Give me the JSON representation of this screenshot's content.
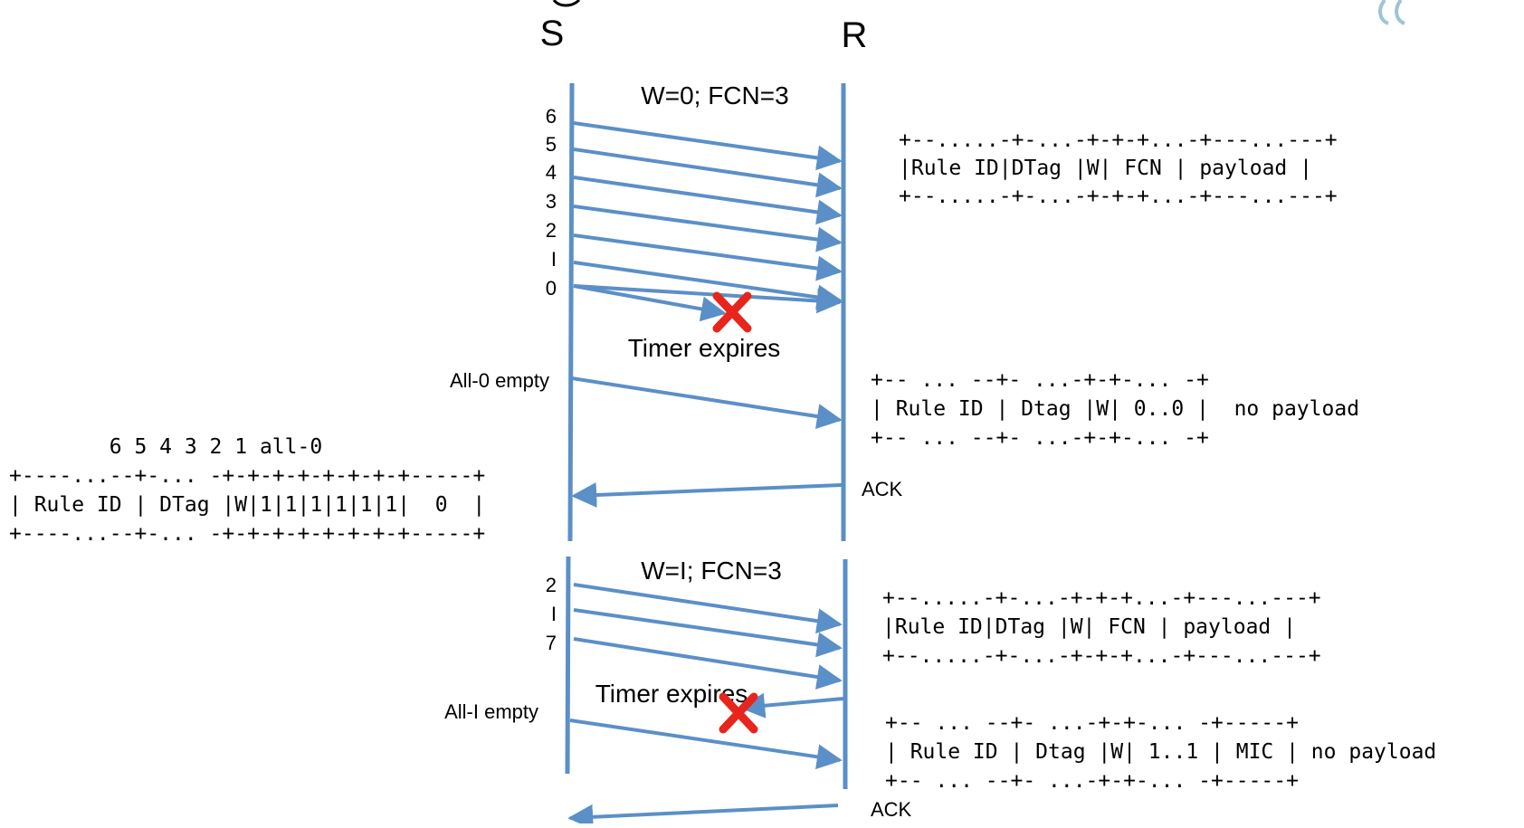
{
  "colors": {
    "line": "#5b8fc7",
    "cross": "#e8251c",
    "text": "#000000",
    "deco": "#9fc3d6"
  },
  "diagram": {
    "sender": "S",
    "receiver": "R",
    "window0": {
      "title": "W=0; FCN=3",
      "fcn_labels": [
        "6",
        "5",
        "4",
        "3",
        "2",
        "I",
        "0"
      ],
      "timer": "Timer expires",
      "all0_label": "All-0 empty",
      "ack_label": "ACK",
      "frame_box": [
        "+--.....-+-...-+-+-+...-+---...---+",
        "|Rule ID|DTag |W| FCN | payload |",
        "+--.....-+-...-+-+-+...-+---...---+"
      ],
      "all0_box": [
        "+-- ... --+- ...-+-+-... -+",
        "| Rule ID | Dtag |W| 0..0 |  no payload",
        "+-- ... --+- ...-+-+-... -+"
      ],
      "bitmap_box": [
        "        6 5 4 3 2 1 all-0",
        "+----...--+-... -+-+-+-+-+-+-+-+-----+",
        "| Rule ID | DTag |W|1|1|1|1|1|1|  0  |",
        "+----...--+-... -+-+-+-+-+-+-+-+-----+"
      ]
    },
    "window1": {
      "title": "W=I; FCN=3",
      "fcn_labels": [
        "2",
        "I",
        "7"
      ],
      "timer": "Timer expires",
      "all1_label": "All-I empty",
      "ack_label": "ACK",
      "frame_box": [
        "+--.....-+-...-+-+-+...-+---...---+",
        "|Rule ID|DTag |W| FCN | payload |",
        "+--.....-+-...-+-+-+...-+---...---+"
      ],
      "all1_box": [
        "+-- ... --+- ...-+-+-... -+-----+",
        "| Rule ID | Dtag |W| 1..1 | MIC | no payload",
        "+-- ... --+- ...-+-+-... -+-----+"
      ]
    }
  }
}
